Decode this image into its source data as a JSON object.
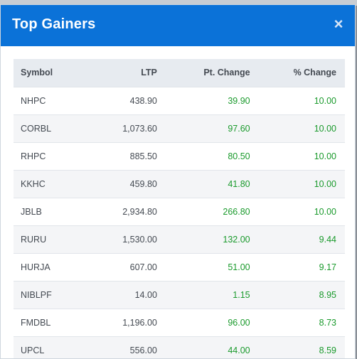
{
  "modal": {
    "title": "Top Gainers",
    "close_glyph": "×"
  },
  "table": {
    "headers": {
      "symbol": "Symbol",
      "ltp": "LTP",
      "pt_change": "Pt. Change",
      "pct_change": "% Change"
    },
    "rows": [
      {
        "symbol": "NHPC",
        "ltp": "438.90",
        "pt_change": "39.90",
        "pct_change": "10.00"
      },
      {
        "symbol": "CORBL",
        "ltp": "1,073.60",
        "pt_change": "97.60",
        "pct_change": "10.00"
      },
      {
        "symbol": "RHPC",
        "ltp": "885.50",
        "pt_change": "80.50",
        "pct_change": "10.00"
      },
      {
        "symbol": "KKHC",
        "ltp": "459.80",
        "pt_change": "41.80",
        "pct_change": "10.00"
      },
      {
        "symbol": "JBLB",
        "ltp": "2,934.80",
        "pt_change": "266.80",
        "pct_change": "10.00"
      },
      {
        "symbol": "RURU",
        "ltp": "1,530.00",
        "pt_change": "132.00",
        "pct_change": "9.44"
      },
      {
        "symbol": "HURJA",
        "ltp": "607.00",
        "pt_change": "51.00",
        "pct_change": "9.17"
      },
      {
        "symbol": "NIBLPF",
        "ltp": "14.00",
        "pt_change": "1.15",
        "pct_change": "8.95"
      },
      {
        "symbol": "FMDBL",
        "ltp": "1,196.00",
        "pt_change": "96.00",
        "pct_change": "8.73"
      },
      {
        "symbol": "UPCL",
        "ltp": "556.00",
        "pt_change": "44.00",
        "pct_change": "8.59"
      }
    ]
  },
  "colors": {
    "header_bg": "#0b72d8",
    "positive": "#1a9a2c"
  }
}
